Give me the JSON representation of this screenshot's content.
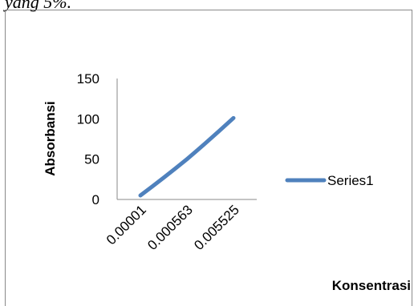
{
  "header_fragment": "yang 5%.",
  "chart_data": {
    "type": "line",
    "categories": [
      "0.00001",
      "0.000563",
      "0.005525"
    ],
    "series": [
      {
        "name": "Series1",
        "values": [
          5,
          50,
          101
        ],
        "color": "#4f81bd"
      }
    ],
    "xlabel": "Konsentrasi",
    "ylabel": "Absorbansi",
    "ylim": [
      0,
      150
    ],
    "yticks": [
      "0",
      "50",
      "100",
      "150"
    ],
    "grid": false,
    "legend_position": "right"
  }
}
